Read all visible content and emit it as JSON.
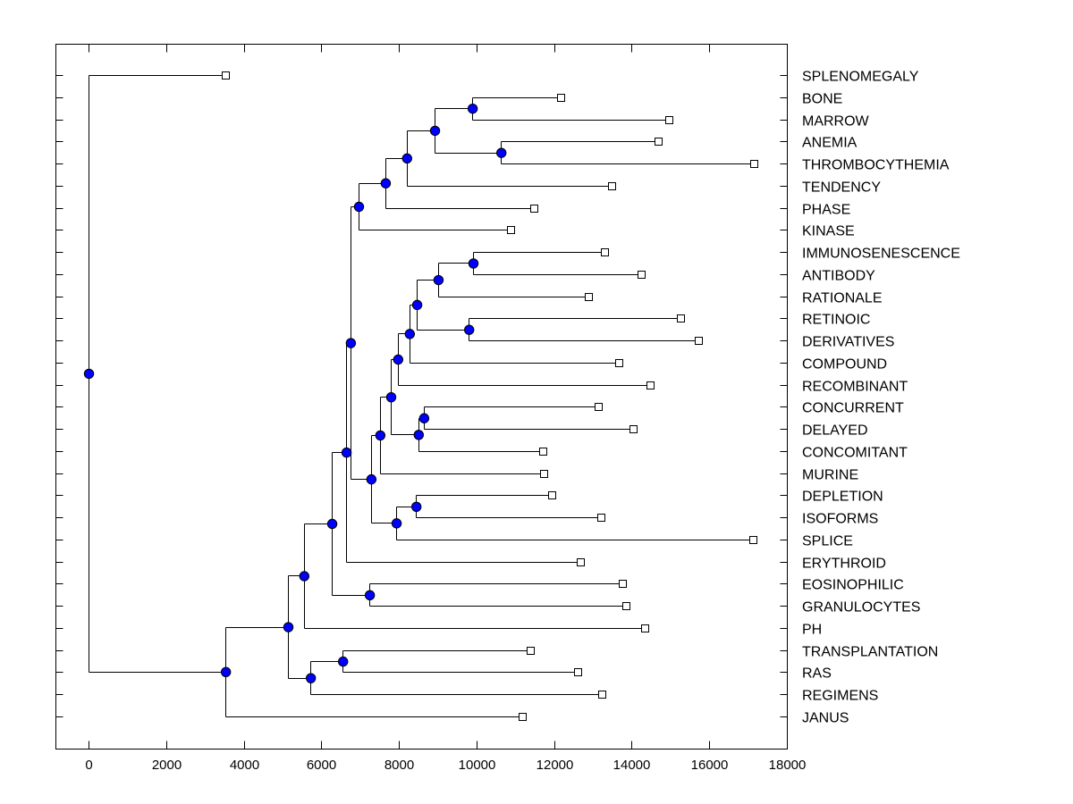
{
  "chart_data": {
    "type": "dendrogram",
    "orientation": "horizontal",
    "xlim": [
      -850,
      18100
    ],
    "x_ticks": [
      0,
      2000,
      4000,
      6000,
      8000,
      10000,
      12000,
      14000,
      16000,
      18000
    ],
    "x_tick_labels": [
      "0",
      "2000",
      "4000",
      "6000",
      "8000",
      "10000",
      "12000",
      "14000",
      "16000",
      "18000"
    ],
    "node_color": "#0000ff",
    "leaves": [
      {
        "label": "SPLENOMEGALY",
        "value": 3530
      },
      {
        "label": "BONE",
        "value": 12170
      },
      {
        "label": "MARROW",
        "value": 14960
      },
      {
        "label": "ANEMIA",
        "value": 14680
      },
      {
        "label": "THROMBOCYTHEMIA",
        "value": 17150
      },
      {
        "label": "TENDENCY",
        "value": 13480
      },
      {
        "label": "PHASE",
        "value": 11480
      },
      {
        "label": "KINASE",
        "value": 10880
      },
      {
        "label": "IMMUNOSENESCENCE",
        "value": 13300
      },
      {
        "label": "ANTIBODY",
        "value": 14240
      },
      {
        "label": "RATIONALE",
        "value": 12880
      },
      {
        "label": "RETINOIC",
        "value": 15260
      },
      {
        "label": "DERIVATIVES",
        "value": 15720
      },
      {
        "label": "COMPOUND",
        "value": 13670
      },
      {
        "label": "RECOMBINANT",
        "value": 14470
      },
      {
        "label": "CONCURRENT",
        "value": 13140
      },
      {
        "label": "DELAYED",
        "value": 14040
      },
      {
        "label": "CONCOMITANT",
        "value": 11710
      },
      {
        "label": "MURINE",
        "value": 11730
      },
      {
        "label": "DEPLETION",
        "value": 11940
      },
      {
        "label": "ISOFORMS",
        "value": 13210
      },
      {
        "label": "SPLICE",
        "value": 17120
      },
      {
        "label": "ERYTHROID",
        "value": 12680
      },
      {
        "label": "EOSINOPHILIC",
        "value": 13760
      },
      {
        "label": "GRANULOCYTES",
        "value": 13850
      },
      {
        "label": "PH",
        "value": 14340
      },
      {
        "label": "TRANSPLANTATION",
        "value": 11390
      },
      {
        "label": "RAS",
        "value": 12610
      },
      {
        "label": "REGIMENS",
        "value": 13230
      },
      {
        "label": "JANUS",
        "value": 11180
      }
    ],
    "tree": {
      "h": 0,
      "c": [
        "SPLENOMEGALY",
        {
          "h": 3530,
          "c": [
            {
              "h": 5140,
              "c": [
                {
                  "h": 5550,
                  "c": [
                    {
                      "h": 6270,
                      "c": [
                        {
                          "h": 6640,
                          "c": [
                            {
                              "h": 6750,
                              "c": [
                                {
                                  "h": 6960,
                                  "c": [
                                    {
                                      "h": 7650,
                                      "c": [
                                        {
                                          "h": 8200,
                                          "c": [
                                            {
                                              "h": 8920,
                                              "c": [
                                                {
                                                  "h": 9890,
                                                  "c": [
                                                    "BONE",
                                                    "MARROW"
                                                  ]
                                                },
                                                {
                                                  "h": 10630,
                                                  "c": [
                                                    "ANEMIA",
                                                    "THROMBOCYTHEMIA"
                                                  ]
                                                }
                                              ]
                                            },
                                            "TENDENCY"
                                          ]
                                        },
                                        "PHASE"
                                      ]
                                    },
                                    "KINASE"
                                  ]
                                },
                                {
                                  "h": 7280,
                                  "c": [
                                    {
                                      "h": 7510,
                                      "c": [
                                        {
                                          "h": 7790,
                                          "c": [
                                            {
                                              "h": 7970,
                                              "c": [
                                                {
                                                  "h": 8270,
                                                  "c": [
                                                    {
                                                      "h": 8460,
                                                      "c": [
                                                        {
                                                          "h": 9010,
                                                          "c": [
                                                            {
                                                              "h": 9910,
                                                              "c": [
                                                                "IMMUNOSENESCENCE",
                                                                "ANTIBODY"
                                                              ]
                                                            },
                                                            "RATIONALE"
                                                          ]
                                                        },
                                                        {
                                                          "h": 9800,
                                                          "c": [
                                                            "RETINOIC",
                                                            "DERIVATIVES"
                                                          ]
                                                        }
                                                      ]
                                                    },
                                                    "COMPOUND"
                                                  ]
                                                },
                                                "RECOMBINANT"
                                              ]
                                            },
                                            {
                                              "h": 8500,
                                              "c": [
                                                {
                                                  "h": 8640,
                                                  "c": [
                                                    "CONCURRENT",
                                                    "DELAYED"
                                                  ]
                                                },
                                                "CONCOMITANT"
                                              ]
                                            }
                                          ]
                                        },
                                        "MURINE"
                                      ]
                                    },
                                    {
                                      "h": 7930,
                                      "c": [
                                        {
                                          "h": 8440,
                                          "c": [
                                            "DEPLETION",
                                            "ISOFORMS"
                                          ]
                                        },
                                        "SPLICE"
                                      ]
                                    }
                                  ]
                                }
                              ]
                            },
                            "ERYTHROID"
                          ]
                        },
                        {
                          "h": 7240,
                          "c": [
                            "EOSINOPHILIC",
                            "GRANULOCYTES"
                          ]
                        }
                      ]
                    },
                    "PH"
                  ]
                },
                {
                  "h": 5720,
                  "c": [
                    {
                      "h": 6550,
                      "c": [
                        "TRANSPLANTATION",
                        "RAS"
                      ]
                    },
                    "REGIMENS"
                  ]
                }
              ]
            },
            "JANUS"
          ]
        }
      ]
    }
  }
}
